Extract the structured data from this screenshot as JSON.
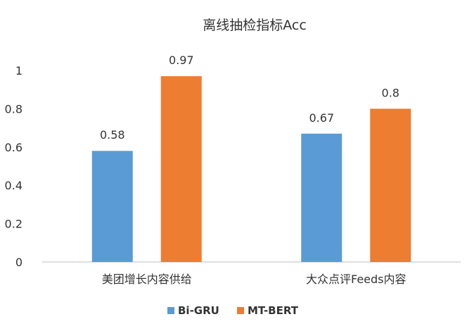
{
  "chart_data": {
    "type": "bar",
    "title": "离线抽检指标Acc",
    "categories": [
      "美团增长内容供给",
      "大众点评Feeds内容"
    ],
    "series": [
      {
        "name": "Bi-GRU",
        "values": [
          0.58,
          0.67
        ]
      },
      {
        "name": "MT-BERT",
        "values": [
          0.97,
          0.8
        ]
      }
    ],
    "data_labels": [
      [
        "0.58",
        "0.67"
      ],
      [
        "0.97",
        "0.8"
      ]
    ],
    "ylim": [
      0,
      1
    ],
    "yticks": [
      0,
      0.2,
      0.4,
      0.6,
      0.8,
      1
    ],
    "ytick_labels": [
      "0",
      "0.2",
      "0.4",
      "0.6",
      "0.8",
      "1"
    ],
    "xlabel": "",
    "ylabel": "",
    "grid": false,
    "legend_position": "bottom"
  },
  "colors": {
    "Bi-GRU": "#5b9bd5",
    "MT-BERT": "#ed7d31",
    "axis": "#bfbfbf",
    "text": "#333333"
  }
}
